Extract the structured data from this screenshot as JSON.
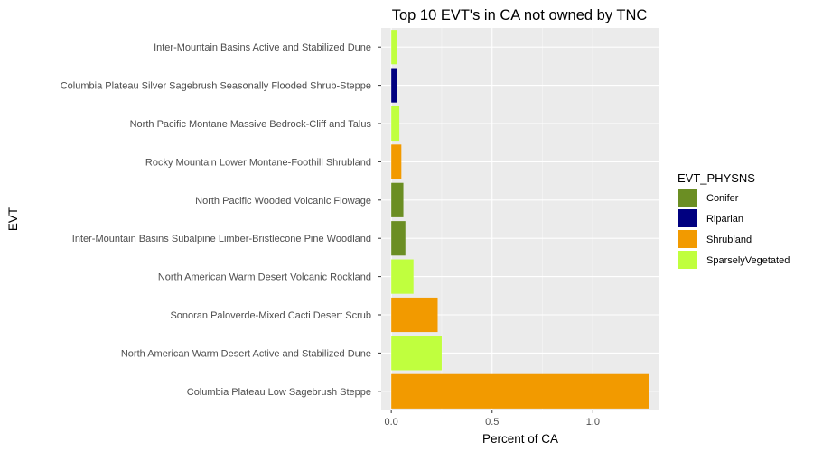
{
  "chart_data": {
    "type": "bar",
    "orientation": "horizontal",
    "title": "Top 10 EVT's in CA not owned by TNC",
    "xlabel": "Percent of CA",
    "ylabel": "EVT",
    "xlim": [
      -0.05,
      1.33
    ],
    "x_ticks": [
      0.0,
      0.5,
      1.0
    ],
    "x_tick_labels": [
      "0.0",
      "0.5",
      "1.0"
    ],
    "grid": true,
    "legend_placement": "right",
    "legend_title": "EVT_PHYSNS",
    "groups": [
      {
        "name": "Conifer",
        "color": "#6b8e23"
      },
      {
        "name": "Riparian",
        "color": "#000080"
      },
      {
        "name": "Shrubland",
        "color": "#f29a00"
      },
      {
        "name": "SparselyVegetated",
        "color": "#c0ff3e"
      }
    ],
    "categories": [
      "Inter-Mountain Basins Active and Stabilized Dune",
      "Columbia Plateau Silver Sagebrush Seasonally Flooded Shrub-Steppe",
      "North Pacific Montane Massive Bedrock-Cliff and Talus",
      "Rocky Mountain Lower Montane-Foothill Shrubland",
      "North Pacific Wooded Volcanic Flowage",
      "Inter-Mountain Basins Subalpine Limber-Bristlecone Pine Woodland",
      "North American Warm Desert Volcanic Rockland",
      "Sonoran Paloverde-Mixed Cacti Desert Scrub",
      "North American Warm Desert Active and Stabilized Dune",
      "Columbia Plateau Low Sagebrush Steppe"
    ],
    "values": [
      0.03,
      0.03,
      0.04,
      0.05,
      0.06,
      0.07,
      0.11,
      0.23,
      0.25,
      1.28
    ],
    "group_of": [
      "SparselyVegetated",
      "Riparian",
      "SparselyVegetated",
      "Shrubland",
      "Conifer",
      "Conifer",
      "SparselyVegetated",
      "Shrubland",
      "SparselyVegetated",
      "Shrubland"
    ]
  }
}
